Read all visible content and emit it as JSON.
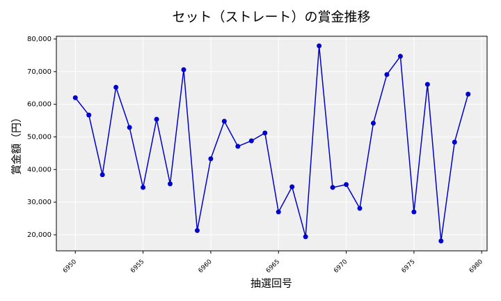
{
  "chart_data": {
    "type": "line",
    "title": "セット（ストレート）の賞金推移",
    "xlabel": "抽選回号",
    "ylabel": "賞金額（円）",
    "x": [
      6950,
      6951,
      6952,
      6953,
      6954,
      6955,
      6956,
      6957,
      6958,
      6959,
      6960,
      6961,
      6962,
      6963,
      6964,
      6965,
      6966,
      6967,
      6968,
      6969,
      6970,
      6971,
      6972,
      6973,
      6974,
      6975,
      6976,
      6977,
      6978,
      6979
    ],
    "series": [
      {
        "color": "#0000cc",
        "values": [
          62000,
          56700,
          38400,
          65200,
          52900,
          34500,
          55400,
          35600,
          70600,
          21300,
          43300,
          54800,
          47100,
          48800,
          51200,
          27000,
          34700,
          19400,
          77900,
          34500,
          35400,
          28100,
          54200,
          69100,
          74700,
          27000,
          66100,
          18100,
          48400,
          63100
        ]
      }
    ],
    "xlim": [
      6948.6,
      6980.4
    ],
    "ylim": [
      15080,
      80850
    ],
    "xticks": [
      6950,
      6955,
      6960,
      6965,
      6970,
      6975,
      6980
    ],
    "yticks": [
      {
        "value": 20000,
        "label": "20,000"
      },
      {
        "value": 30000,
        "label": "30,000"
      },
      {
        "value": 40000,
        "label": "40,000"
      },
      {
        "value": 50000,
        "label": "50,000"
      },
      {
        "value": 60000,
        "label": "60,000"
      },
      {
        "value": 70000,
        "label": "70,000"
      },
      {
        "value": 80000,
        "label": "80,000"
      }
    ],
    "grid": true
  }
}
